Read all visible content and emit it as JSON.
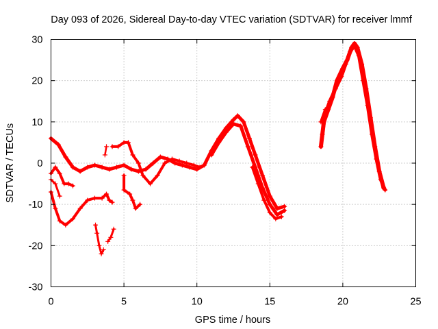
{
  "chart_data": {
    "type": "scatter",
    "title": "Day 093 of 2026, Sidereal Day-to-day VTEC variation (SDTVAR) for receiver lmmf",
    "xlabel": "GPS time / hours",
    "ylabel": "SDTVAR / TECUs",
    "xlim": [
      0,
      25
    ],
    "ylim": [
      -30,
      30
    ],
    "xticks": [
      0,
      5,
      10,
      15,
      20,
      25
    ],
    "yticks": [
      -30,
      -20,
      -10,
      0,
      10,
      20,
      30
    ],
    "xtick_labels": [
      "0",
      "5",
      "10",
      "15",
      "20",
      "25"
    ],
    "ytick_labels": [
      "-30",
      "-20",
      "-10",
      "0",
      "10",
      "20",
      "30"
    ],
    "grid": true,
    "marker": "+",
    "color": "#ff0000",
    "series": [
      {
        "name": "trace-1",
        "points": [
          [
            0,
            6
          ],
          [
            0.5,
            4.5
          ],
          [
            1,
            1.5
          ],
          [
            1.5,
            -1
          ],
          [
            2,
            -2
          ],
          [
            2.5,
            -1
          ],
          [
            3,
            -0.5
          ],
          [
            3.5,
            -1
          ],
          [
            4,
            -1.5
          ],
          [
            4.5,
            -1
          ],
          [
            5,
            -0.5
          ],
          [
            5.5,
            -1.5
          ],
          [
            6,
            -2
          ],
          [
            6.5,
            -1.5
          ],
          [
            7,
            0
          ],
          [
            7.5,
            1.5
          ],
          [
            8,
            1
          ],
          [
            8.5,
            0
          ],
          [
            9,
            -0.5
          ],
          [
            9.5,
            -1
          ],
          [
            10,
            -1.5
          ],
          [
            10.5,
            -0.5
          ],
          [
            11,
            3
          ],
          [
            11.5,
            6
          ],
          [
            12,
            8.5
          ],
          [
            12.5,
            10.5
          ],
          [
            12.8,
            11.5
          ],
          [
            13.2,
            10
          ],
          [
            13.6,
            6
          ],
          [
            14,
            2
          ],
          [
            14.5,
            -3
          ],
          [
            15,
            -8
          ],
          [
            15.5,
            -11
          ],
          [
            16,
            -10.5
          ]
        ],
        "width": 5
      },
      {
        "name": "trace-2",
        "points": [
          [
            0,
            -2.5
          ],
          [
            0.3,
            -1
          ],
          [
            0.6,
            -2.5
          ],
          [
            0.9,
            -5
          ],
          [
            1.2,
            -5
          ],
          [
            1.5,
            -5.5
          ]
        ],
        "width": 4
      },
      {
        "name": "trace-3",
        "points": [
          [
            0,
            -4
          ],
          [
            0.3,
            -5
          ],
          [
            0.6,
            -8
          ]
        ],
        "width": 3
      },
      {
        "name": "trace-4",
        "points": [
          [
            0,
            -7
          ],
          [
            0.3,
            -11
          ],
          [
            0.6,
            -14
          ],
          [
            1,
            -15
          ],
          [
            1.5,
            -13.5
          ],
          [
            2,
            -11
          ],
          [
            2.5,
            -9
          ],
          [
            3,
            -8.5
          ],
          [
            3.5,
            -8.5
          ],
          [
            3.8,
            -7.5
          ],
          [
            4,
            -9
          ],
          [
            4.2,
            -9.5
          ]
        ],
        "width": 4
      },
      {
        "name": "trace-5",
        "points": [
          [
            3.7,
            2
          ],
          [
            3.8,
            4
          ]
        ],
        "width": 2.5
      },
      {
        "name": "trace-6",
        "points": [
          [
            4.2,
            4
          ],
          [
            4.6,
            4
          ],
          [
            5,
            5
          ],
          [
            5.3,
            5
          ],
          [
            5.6,
            2
          ],
          [
            6,
            0
          ],
          [
            6.3,
            -3
          ],
          [
            6.8,
            -5
          ],
          [
            7.3,
            -3
          ],
          [
            7.8,
            0
          ],
          [
            8.3,
            1
          ],
          [
            8.8,
            0.5
          ],
          [
            9.3,
            0
          ],
          [
            9.8,
            -0.5
          ],
          [
            10.2,
            -1
          ]
        ],
        "width": 4
      },
      {
        "name": "trace-7",
        "points": [
          [
            5,
            -3
          ],
          [
            5,
            -6.5
          ],
          [
            5.4,
            -7.5
          ],
          [
            5.6,
            -9
          ],
          [
            5.8,
            -11
          ],
          [
            6.1,
            -10
          ]
        ],
        "width": 4
      },
      {
        "name": "trace-8",
        "points": [
          [
            3.05,
            -15
          ],
          [
            3.15,
            -17
          ],
          [
            3.3,
            -20
          ],
          [
            3.45,
            -22
          ],
          [
            3.6,
            -21
          ]
        ],
        "width": 3
      },
      {
        "name": "trace-9",
        "points": [
          [
            3.9,
            -19
          ],
          [
            4.1,
            -18
          ],
          [
            4.3,
            -16
          ]
        ],
        "width": 3
      },
      {
        "name": "trace-10",
        "points": [
          [
            11,
            2
          ],
          [
            11.5,
            5
          ],
          [
            12,
            7.5
          ],
          [
            12.5,
            9.5
          ],
          [
            13,
            9
          ],
          [
            13.5,
            4
          ],
          [
            14,
            -1
          ],
          [
            14.5,
            -6
          ],
          [
            15,
            -10
          ],
          [
            15.5,
            -12.5
          ],
          [
            16,
            -11.5
          ]
        ],
        "width": 5
      },
      {
        "name": "trace-11",
        "points": [
          [
            13.8,
            -1
          ],
          [
            14.2,
            -5
          ],
          [
            14.6,
            -9
          ],
          [
            15,
            -12
          ],
          [
            15.4,
            -13.5
          ],
          [
            15.8,
            -13
          ]
        ],
        "width": 4
      },
      {
        "name": "trace-12",
        "points": [
          [
            18.5,
            4
          ],
          [
            18.7,
            10
          ],
          [
            19,
            13
          ],
          [
            19.3,
            16
          ],
          [
            19.6,
            20
          ],
          [
            20,
            23
          ],
          [
            20.3,
            25
          ],
          [
            20.6,
            28
          ],
          [
            20.8,
            29
          ],
          [
            21,
            28
          ],
          [
            21.3,
            24
          ],
          [
            21.6,
            18
          ],
          [
            21.9,
            11
          ],
          [
            22.2,
            4
          ],
          [
            22.5,
            -2
          ],
          [
            22.8,
            -6
          ]
        ],
        "width": 6
      },
      {
        "name": "trace-13",
        "points": [
          [
            18.6,
            7
          ],
          [
            18.8,
            12
          ],
          [
            19.1,
            15
          ],
          [
            19.5,
            18
          ],
          [
            19.9,
            21
          ],
          [
            20.2,
            24
          ],
          [
            20.5,
            27
          ],
          [
            20.8,
            28.5
          ],
          [
            21.1,
            26
          ],
          [
            21.4,
            20
          ],
          [
            21.7,
            14
          ],
          [
            22,
            7
          ],
          [
            22.3,
            1
          ],
          [
            22.6,
            -4
          ],
          [
            22.9,
            -6.5
          ]
        ],
        "width": 5
      },
      {
        "name": "trace-14",
        "points": [
          [
            18.5,
            10
          ],
          [
            18.8,
            13
          ]
        ],
        "width": 4
      }
    ]
  }
}
